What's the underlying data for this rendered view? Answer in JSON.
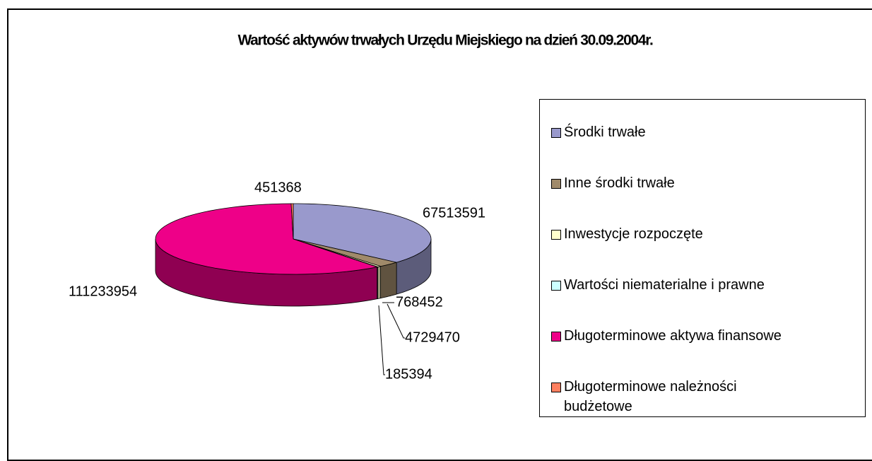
{
  "chart_data": {
    "type": "pie",
    "title": "Wartość aktywów trwałych Urzędu Miejskiego na dzień 30.09.2004r.",
    "categories": [
      "Środki trwałe",
      "Inne środki trwałe",
      "Inwestycje rozpoczęte",
      "Wartości niematerialne i prawne",
      "Długoterminowe aktywa finansowe",
      "Długoterminowe należności budżetowe"
    ],
    "values": [
      67513591,
      4729470,
      768452,
      185394,
      111233954,
      451368
    ],
    "colors": [
      "#9999cc",
      "#a08a6a",
      "#ffffcc",
      "#ccffff",
      "#ee0088",
      "#ff8060"
    ],
    "legend": "right"
  }
}
